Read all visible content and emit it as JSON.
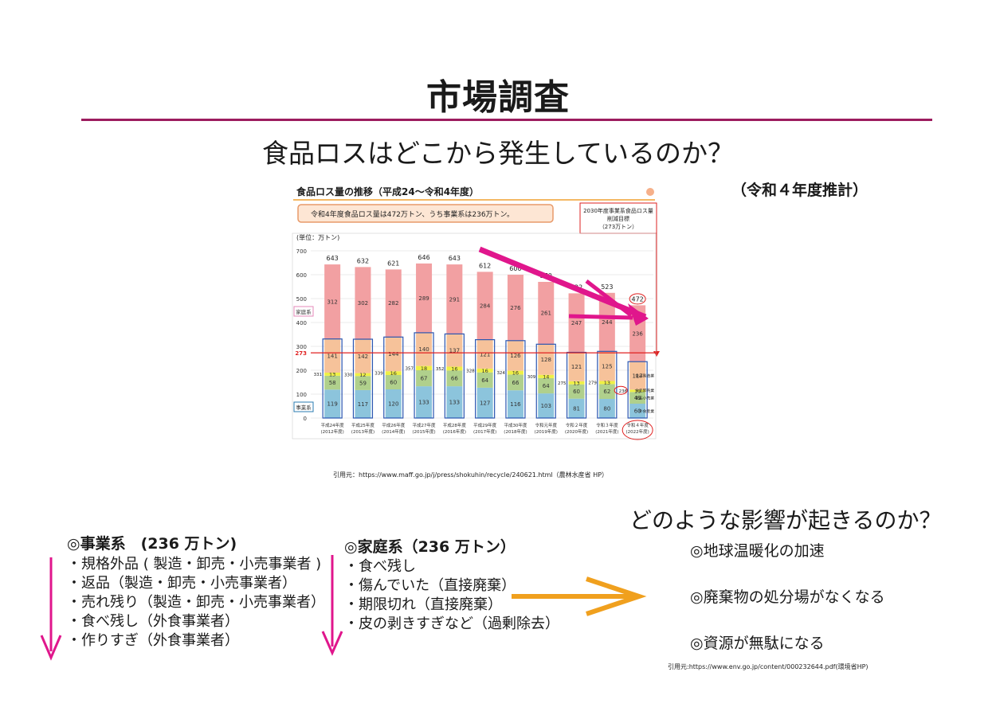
{
  "slide": {
    "title": "市場調査",
    "subtitle": "食品ロスはどこから発生しているのか？",
    "estimate_label": "（令和４年度推計）",
    "chart_source": "引用元：https://www.maff.go.jp/j/press/shokuhin/recycle/240621.html（農林水産省 HP）",
    "impact_question": "どのような影響が起きるのか？",
    "impacts": [
      "◎地球温暖化の加速",
      "◎廃棄物の処分場がなくなる",
      "◎資源が無駄になる"
    ],
    "impact_source": "引用元:https://www.env.go.jp/content/000232644.pdf(環境省HP)",
    "business": {
      "heading": "◎事業系　(236 万トン)",
      "items": [
        "・規格外品 ( 製造・卸売・小売事業者 )",
        "・返品（製造・卸売・小売事業者）",
        "・売れ残り（製造・卸売・小売事業者）",
        "・食べ残し（外食事業者）",
        "・作りすぎ（外食事業者）"
      ]
    },
    "household": {
      "heading": "◎家庭系（236 万トン）",
      "items": [
        "・食べ残し",
        "・傷んでいた（直接廃棄）",
        "・期限切れ（直接廃棄）",
        "・皮の剥きすぎなど（過剰除去）"
      ]
    },
    "colors": {
      "accent": "#9c1c5e",
      "arrow_pink": "#e0168c",
      "arrow_orange": "#f0a01e"
    }
  },
  "chart_data": {
    "type": "bar",
    "title": "食品ロス量の推移（平成24～令和4年度）",
    "note": "令和4年度食品ロス量は472万トン、うち事業系は236万トン。",
    "target_box": [
      "2030年度事業系食品ロス量",
      "削減目標",
      "（273万トン）"
    ],
    "unit_label": "(単位：万トン)",
    "ylim": [
      0,
      700
    ],
    "yticks": [
      0,
      100,
      200,
      300,
      400,
      500,
      600,
      700
    ],
    "target_value": 273,
    "target_label": "273",
    "categories": [
      [
        "平成24年度",
        "(2012年度)"
      ],
      [
        "平成25年度",
        "(2013年度)"
      ],
      [
        "平成26年度",
        "(2014年度)"
      ],
      [
        "平成27年度",
        "(2015年度)"
      ],
      [
        "平成28年度",
        "(2016年度)"
      ],
      [
        "平成29年度",
        "(2017年度)"
      ],
      [
        "平成30年度",
        "(2018年度)"
      ],
      [
        "令和元年度",
        "(2019年度)"
      ],
      [
        "令和２年度",
        "(2020年度)"
      ],
      [
        "令和３年度",
        "(2021年度)"
      ],
      [
        "令和４年度",
        "(2022年度)"
      ]
    ],
    "totals": [
      643,
      632,
      621,
      646,
      643,
      612,
      600,
      570,
      522,
      523,
      472
    ],
    "business_totals": [
      331,
      330,
      339,
      357,
      352,
      328,
      324,
      309,
      275,
      279,
      236
    ],
    "series": [
      {
        "name": "外食産業",
        "values": [
          119,
          117,
          120,
          133,
          133,
          127,
          116,
          103,
          81,
          80,
          60
        ],
        "color": "#8cc4dc"
      },
      {
        "name": "食品小売業",
        "values": [
          58,
          59,
          60,
          67,
          66,
          64,
          66,
          64,
          60,
          62,
          49
        ],
        "color": "#b0d08c"
      },
      {
        "name": "食品卸売業",
        "values": [
          13,
          12,
          16,
          18,
          16,
          16,
          16,
          14,
          13,
          13,
          10
        ],
        "color": "#eef046"
      },
      {
        "name": "食品製造業",
        "values": [
          141,
          142,
          144,
          140,
          137,
          121,
          126,
          128,
          121,
          125,
          117
        ],
        "color": "#f6c29a"
      },
      {
        "name": "家庭系",
        "values": [
          312,
          302,
          282,
          289,
          291,
          284,
          276,
          261,
          247,
          244,
          236
        ],
        "color": "#f2a0a2"
      }
    ],
    "side_labels": {
      "household": "家庭系",
      "business": "事業系"
    },
    "legend": [
      "食品製造業",
      "食品卸売業",
      "食品小売業",
      "外食産業"
    ]
  }
}
